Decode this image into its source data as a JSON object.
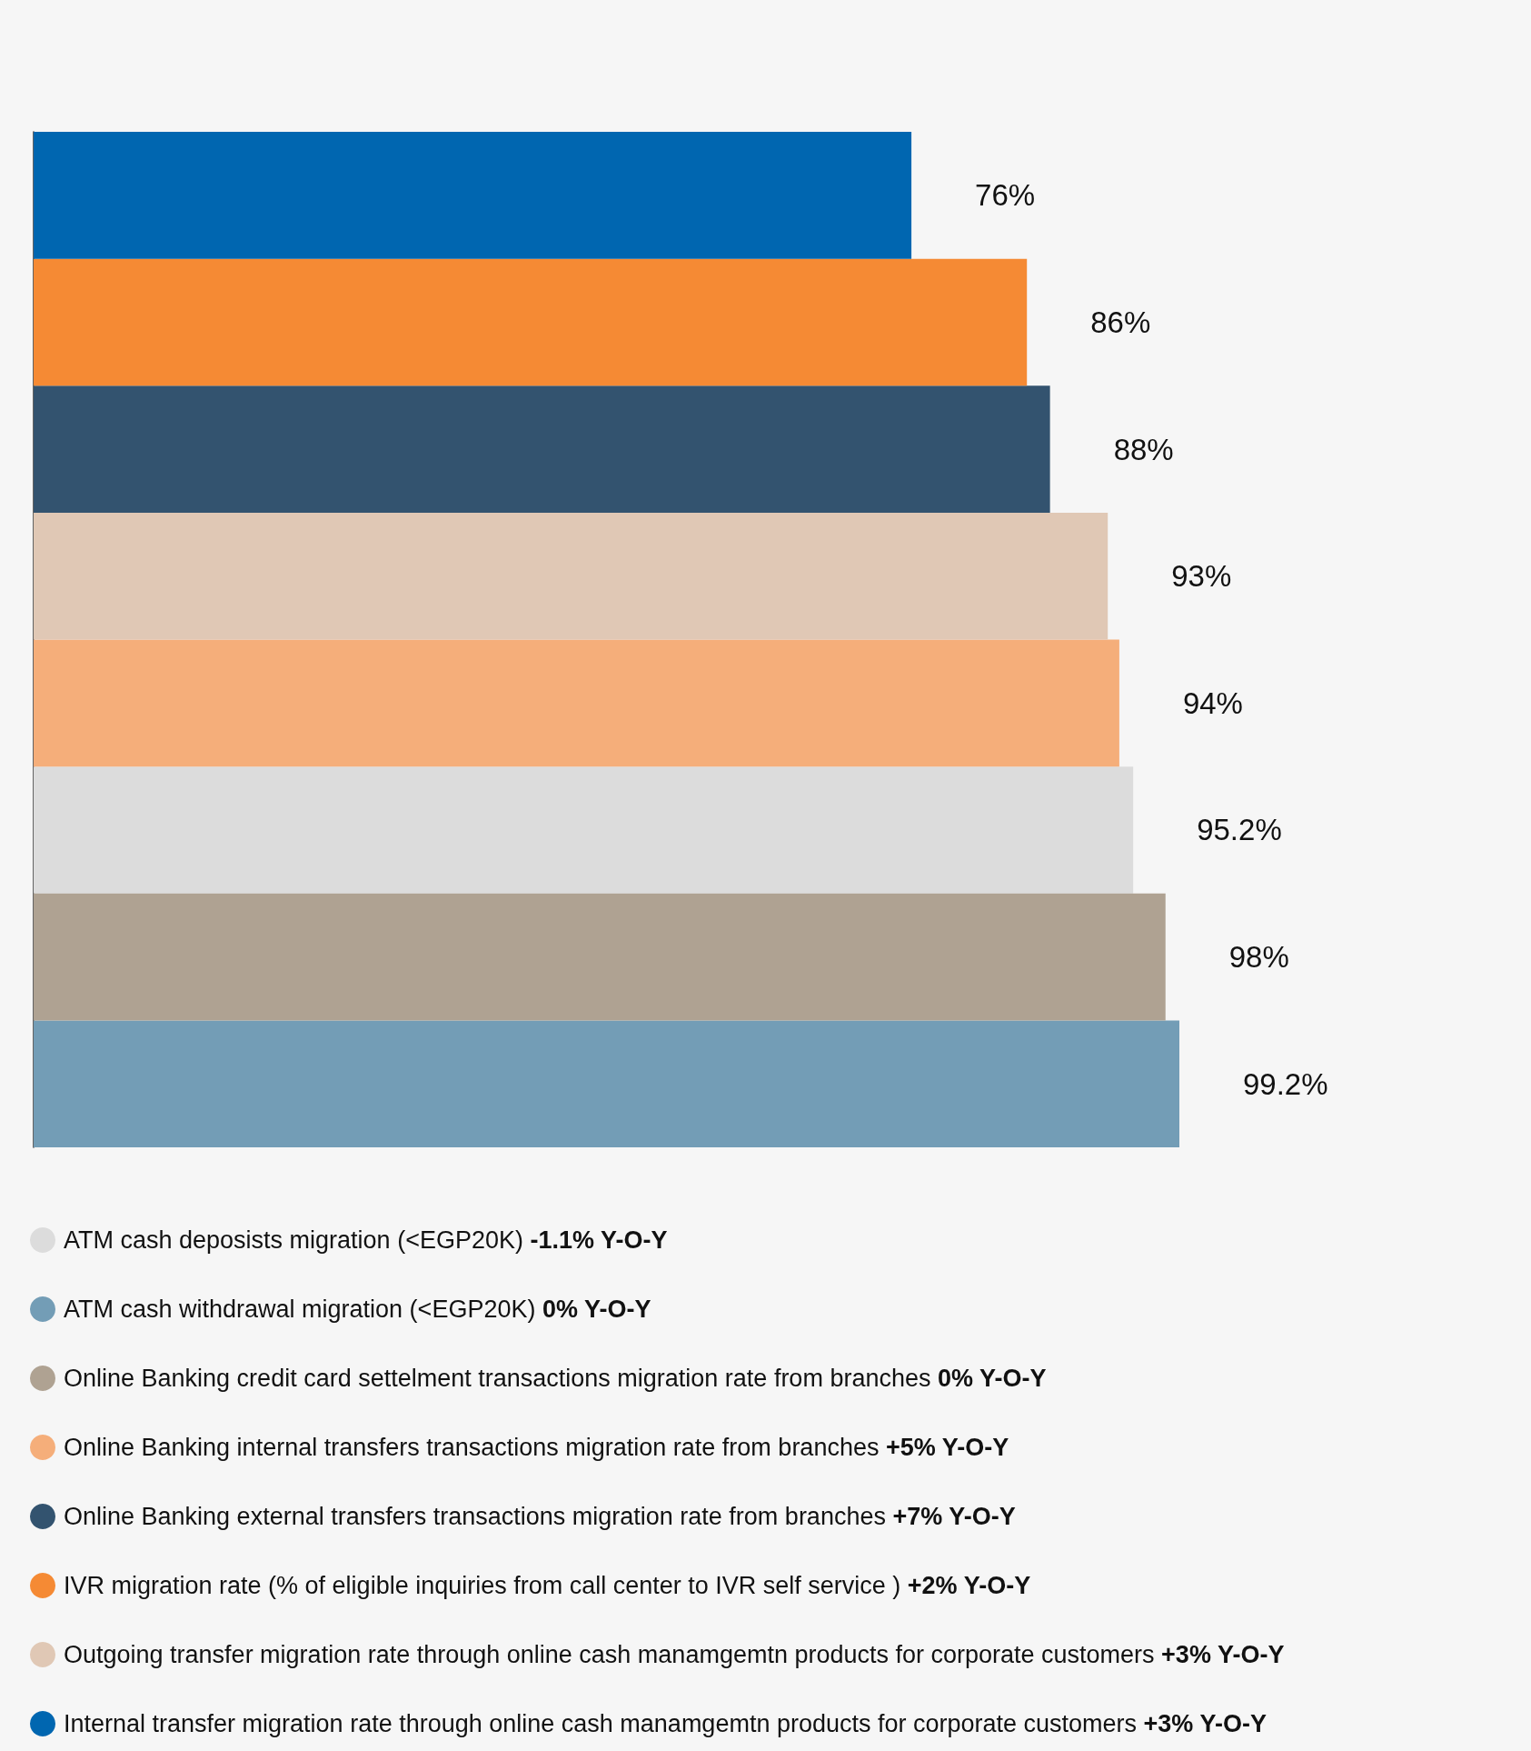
{
  "chart_data": {
    "type": "bar",
    "orientation": "horizontal",
    "legend": "bottom",
    "stacked": true,
    "categories": [
      null,
      null,
      null,
      null,
      null,
      null,
      null,
      null
    ],
    "series": [
      {
        "name": "ATM cash deposists migration (<EGP20K) -1.1% Y-O-Y",
        "color": "#dcdcdc",
        "values": [
          null,
          null,
          null,
          null,
          null,
          95.2,
          null,
          null
        ],
        "value_labels": [
          null,
          null,
          null,
          null,
          null,
          "95.2%",
          null,
          null
        ]
      },
      {
        "name": "ATM cash withdrawal migration (<EGP20K) 0% Y-O-Y",
        "color": "#739db6",
        "values": [
          null,
          null,
          null,
          null,
          null,
          null,
          null,
          99.2
        ],
        "value_labels": [
          null,
          null,
          null,
          null,
          null,
          null,
          null,
          "99.2%"
        ]
      },
      {
        "name": "Online Banking credit card settelment transactions migration rate from branches 0% Y-O-Y",
        "color": "#afa292",
        "values": [
          null,
          null,
          null,
          null,
          null,
          null,
          98,
          null
        ],
        "value_labels": [
          null,
          null,
          null,
          null,
          null,
          null,
          "98%",
          null
        ]
      },
      {
        "name": "Online Banking internal transfers transactions migration rate from branches +5% Y-O-Y",
        "color": "#f5ae7a",
        "values": [
          null,
          null,
          null,
          null,
          94,
          null,
          null,
          null
        ],
        "value_labels": [
          null,
          null,
          null,
          null,
          "94%",
          null,
          null,
          null
        ]
      },
      {
        "name": "Online Banking external transfers transactions migration rate from branches +7% Y-O-Y",
        "color": "#33536f",
        "values": [
          null,
          null,
          88,
          null,
          null,
          null,
          null,
          null
        ],
        "value_labels": [
          null,
          null,
          "88%",
          null,
          null,
          null,
          null,
          null
        ]
      },
      {
        "name": "IVR migration rate (% of eligible inquiries from call center to IVR self service ) +2% Y-O-Y",
        "color": "#f58a34",
        "values": [
          null,
          86,
          null,
          null,
          null,
          null,
          null,
          null
        ],
        "value_labels": [
          null,
          "86%",
          null,
          null,
          null,
          null,
          null,
          null
        ]
      },
      {
        "name": "Outgoing transfer migration rate through online cash manamgemtn products for corporate customers +3% Y-O-Y",
        "color": "#e0c8b5",
        "values": [
          null,
          null,
          null,
          93,
          null,
          null,
          null,
          null
        ],
        "value_labels": [
          null,
          null,
          null,
          "93%",
          null,
          null,
          null,
          null
        ]
      },
      {
        "name": "Internal transfer migration rate through online cash manamgemtn products for corporate customers +3% Y-O-Y",
        "color": "#0066b0",
        "values": [
          76,
          null,
          null,
          null,
          null,
          null,
          null,
          null
        ],
        "value_labels": [
          "76%",
          null,
          null,
          null,
          null,
          null,
          null,
          null
        ]
      }
    ]
  }
}
